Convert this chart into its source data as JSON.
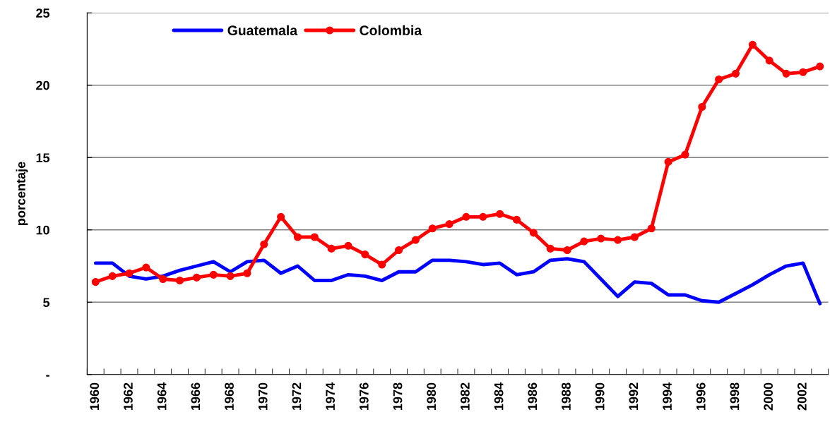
{
  "chart_data": {
    "type": "line",
    "ylabel": "porcentaje",
    "categories": [
      "1960",
      null,
      "1962",
      null,
      "1964",
      null,
      "1966",
      null,
      "1968",
      null,
      "1970",
      null,
      "1972",
      null,
      "1974",
      null,
      "1976",
      null,
      "1978",
      null,
      "1980",
      null,
      "1982",
      null,
      "1984",
      null,
      "1986",
      null,
      "1988",
      null,
      "1990",
      null,
      "1992",
      null,
      "1994",
      null,
      "1996",
      null,
      "1998",
      null,
      "2000",
      null,
      "2002",
      null
    ],
    "series": [
      {
        "name": "Guatemala",
        "color": "#0000ff",
        "marker": "none",
        "values": [
          7.7,
          7.7,
          6.8,
          6.6,
          6.8,
          7.2,
          7.5,
          7.8,
          7.1,
          7.8,
          7.9,
          7.0,
          7.5,
          6.5,
          6.5,
          6.9,
          6.8,
          6.5,
          7.1,
          7.1,
          7.9,
          7.9,
          7.8,
          7.6,
          7.7,
          6.9,
          7.1,
          7.9,
          8.0,
          7.8,
          6.6,
          5.4,
          6.4,
          6.3,
          5.5,
          5.5,
          5.1,
          5.0,
          5.6,
          6.2,
          6.9,
          7.5,
          7.7,
          4.9
        ]
      },
      {
        "name": "Colombia",
        "color": "#ff0000",
        "marker": "circle",
        "values": [
          6.4,
          6.8,
          7.0,
          7.4,
          6.6,
          6.5,
          6.7,
          6.9,
          6.8,
          7.0,
          9.0,
          10.9,
          9.5,
          9.5,
          8.7,
          8.9,
          8.3,
          7.6,
          8.6,
          9.3,
          10.1,
          10.4,
          10.9,
          10.9,
          11.1,
          10.7,
          9.8,
          8.7,
          8.6,
          9.2,
          9.4,
          9.3,
          9.5,
          10.1,
          14.7,
          15.2,
          18.5,
          20.4,
          20.8,
          22.8,
          21.7,
          20.8,
          20.9,
          21.3
        ]
      }
    ],
    "ylim": [
      0,
      25
    ],
    "yticks": [
      {
        "value": 0,
        "label": "-"
      },
      5,
      10,
      15,
      20,
      25
    ],
    "grid": "y",
    "legend": "top left",
    "line_style": "solid"
  }
}
